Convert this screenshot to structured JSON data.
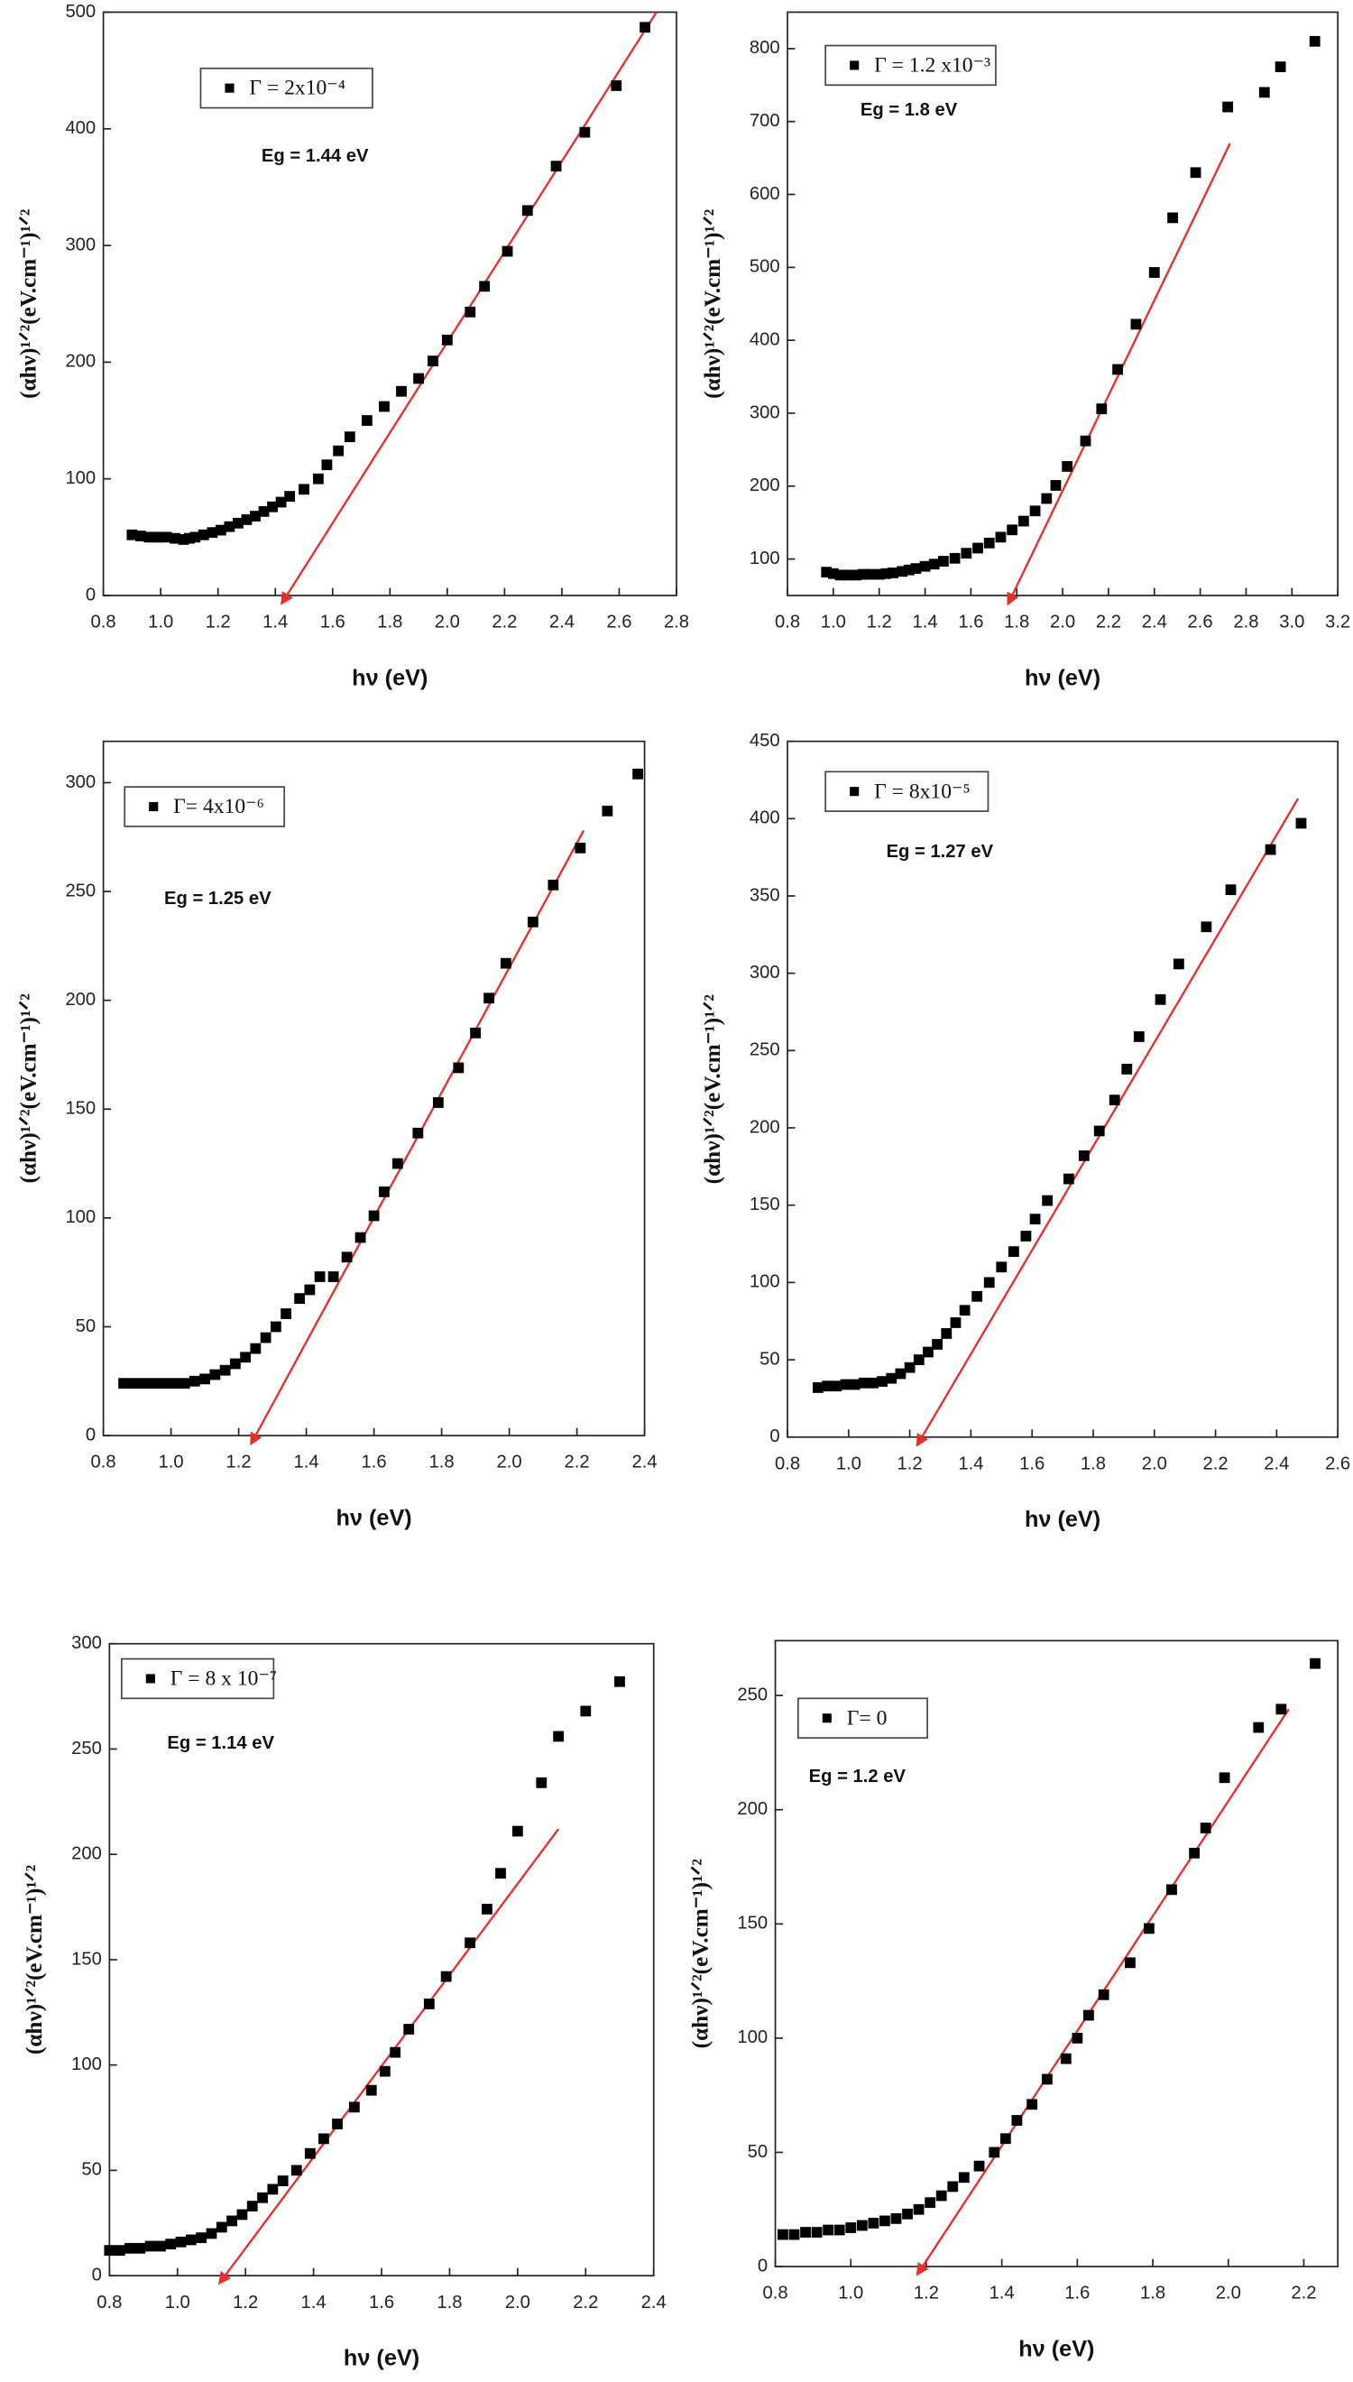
{
  "chart_data": [
    {
      "type": "scatter",
      "annotation": "Eg = 1.44 eV",
      "xlabel": "hν (eV)",
      "ylabel": "(αhν)¹ᐟ²(eV.cm⁻¹)¹ᐟ²",
      "x": [
        0.9,
        0.93,
        0.96,
        0.99,
        1.02,
        1.05,
        1.08,
        1.1,
        1.12,
        1.15,
        1.18,
        1.21,
        1.24,
        1.27,
        1.3,
        1.33,
        1.36,
        1.39,
        1.42,
        1.45,
        1.5,
        1.55,
        1.58,
        1.62,
        1.66,
        1.72,
        1.78,
        1.84,
        1.9,
        1.95,
        2.0,
        2.08,
        2.13,
        2.21,
        2.28,
        2.38,
        2.48,
        2.59,
        2.69
      ],
      "series": [
        {
          "name": "Γ = 2x10⁻⁴",
          "color": "#000000",
          "values": [
            52,
            51,
            50,
            50,
            50,
            49,
            48,
            49,
            50,
            52,
            54,
            56,
            59,
            62,
            65,
            68,
            72,
            76,
            80,
            85,
            91,
            100,
            112,
            124,
            136,
            150,
            162,
            175,
            186,
            201,
            219,
            243,
            265,
            295,
            330,
            368,
            397,
            437,
            487
          ]
        }
      ],
      "fit": {
        "x": [
          1.44,
          2.73
        ],
        "y": [
          0,
          500
        ],
        "color": "#e8302a"
      },
      "xlim": [
        0.8,
        2.8
      ],
      "xticks": [
        0.8,
        {
          "value": 1,
          "label": "1.0"
        },
        1.2,
        1.4,
        1.6,
        1.8,
        {
          "value": 2,
          "label": "2.0"
        },
        2.2,
        2.4,
        2.6,
        2.8
      ],
      "ylim": [
        0,
        500
      ],
      "yticks": [
        0,
        100,
        200,
        300,
        400,
        500
      ]
    },
    {
      "type": "scatter",
      "annotation": "Eg = 1.8 eV",
      "xlabel": "hν (eV)",
      "ylabel": "(αhν)¹ᐟ²(eV.cm⁻¹)¹ᐟ²",
      "x": [
        0.97,
        1.0,
        1.03,
        1.06,
        1.1,
        1.13,
        1.16,
        1.2,
        1.23,
        1.26,
        1.3,
        1.33,
        1.36,
        1.4,
        1.44,
        1.48,
        1.53,
        1.58,
        1.63,
        1.68,
        1.73,
        1.78,
        1.83,
        1.88,
        1.93,
        1.97,
        2.02,
        2.1,
        2.17,
        2.24,
        2.32,
        2.4,
        2.48,
        2.58,
        2.72,
        2.88,
        2.95,
        3.1
      ],
      "series": [
        {
          "name": "Γ = 1.2 x10⁻³",
          "color": "#000000",
          "values": [
            82,
            80,
            78,
            78,
            78,
            79,
            79,
            79,
            80,
            81,
            83,
            85,
            87,
            90,
            93,
            97,
            101,
            108,
            115,
            122,
            130,
            140,
            152,
            166,
            183,
            201,
            227,
            262,
            306,
            360,
            422,
            493,
            568,
            630,
            720,
            740,
            775,
            810
          ]
        }
      ],
      "fit": {
        "x": [
          1.78,
          2.73
        ],
        "y": [
          50,
          670
        ],
        "color": "#e8302a"
      },
      "xlim": [
        0.8,
        3.2
      ],
      "xticks": [
        0.8,
        {
          "value": 1,
          "label": "1.0"
        },
        1.2,
        1.4,
        1.6,
        1.8,
        {
          "value": 2,
          "label": "2.0"
        },
        2.2,
        2.4,
        2.6,
        2.8,
        {
          "value": 3,
          "label": "3.0"
        },
        3.2
      ],
      "ylim": [
        50,
        850
      ],
      "yticks": [
        100,
        200,
        300,
        400,
        500,
        600,
        700,
        800
      ]
    },
    {
      "type": "scatter",
      "annotation": "Eg = 1.25 eV",
      "xlabel": "hν (eV)",
      "ylabel": "(αhν)¹ᐟ²(eV.cm⁻¹)¹ᐟ²",
      "x": [
        0.86,
        0.89,
        0.92,
        0.95,
        0.98,
        1.01,
        1.04,
        1.07,
        1.1,
        1.13,
        1.16,
        1.19,
        1.22,
        1.25,
        1.28,
        1.31,
        1.34,
        1.38,
        1.41,
        1.44,
        1.48,
        1.52,
        1.56,
        1.6,
        1.63,
        1.67,
        1.73,
        1.79,
        1.85,
        1.9,
        1.94,
        1.99,
        2.07,
        2.13,
        2.21,
        2.29,
        2.38
      ],
      "series": [
        {
          "name": "Γ= 4x10⁻⁶",
          "color": "#000000",
          "values": [
            24,
            24,
            24,
            24,
            24,
            24,
            24,
            25,
            26,
            28,
            30,
            33,
            36,
            40,
            45,
            50,
            56,
            63,
            67,
            73,
            73,
            82,
            91,
            101,
            112,
            125,
            139,
            153,
            169,
            185,
            201,
            217,
            236,
            253,
            270,
            287,
            304
          ]
        }
      ],
      "fit": {
        "x": [
          1.25,
          2.22
        ],
        "y": [
          0,
          278
        ],
        "color": "#e8302a"
      },
      "xlim": [
        0.8,
        2.4
      ],
      "xticks": [
        0.8,
        {
          "value": 1,
          "label": "1.0"
        },
        1.2,
        1.4,
        1.6,
        1.8,
        {
          "value": 2,
          "label": "2.0"
        },
        2.2,
        2.4
      ],
      "ylim": [
        0,
        319
      ],
      "yticks": [
        0,
        50,
        100,
        150,
        200,
        250,
        300
      ]
    },
    {
      "type": "scatter",
      "annotation": "Eg = 1.27 eV",
      "xlabel": "hν (eV)",
      "ylabel": "(αhν)¹ᐟ²(eV.cm⁻¹)¹ᐟ²",
      "x": [
        0.9,
        0.93,
        0.96,
        0.99,
        1.02,
        1.05,
        1.08,
        1.11,
        1.14,
        1.17,
        1.2,
        1.23,
        1.26,
        1.29,
        1.32,
        1.35,
        1.38,
        1.42,
        1.46,
        1.5,
        1.54,
        1.58,
        1.61,
        1.65,
        1.72,
        1.77,
        1.82,
        1.87,
        1.91,
        1.95,
        2.02,
        2.08,
        2.17,
        2.25,
        2.38,
        2.48
      ],
      "series": [
        {
          "name": "Γ = 8x10⁻⁵",
          "color": "#000000",
          "values": [
            32,
            33,
            33,
            34,
            34,
            35,
            35,
            36,
            38,
            41,
            45,
            50,
            55,
            60,
            67,
            74,
            82,
            91,
            100,
            110,
            120,
            130,
            141,
            153,
            167,
            182,
            198,
            218,
            238,
            259,
            283,
            306,
            330,
            354,
            380,
            397
          ]
        }
      ],
      "fit": {
        "x": [
          1.24,
          2.47
        ],
        "y": [
          0,
          413
        ],
        "color": "#e8302a"
      },
      "xlim": [
        0.8,
        2.6
      ],
      "xticks": [
        0.8,
        {
          "value": 1,
          "label": "1.0"
        },
        1.2,
        1.4,
        1.6,
        1.8,
        {
          "value": 2,
          "label": "2.0"
        },
        2.2,
        2.4,
        2.6
      ],
      "ylim": [
        0,
        450
      ],
      "yticks": [
        0,
        50,
        100,
        150,
        200,
        250,
        300,
        350,
        400,
        450
      ]
    },
    {
      "type": "scatter",
      "annotation": "Eg = 1.14 eV",
      "xlabel": "hν (eV)",
      "ylabel": "(αhν)¹ᐟ²(eV.cm⁻¹)¹ᐟ²",
      "x": [
        0.8,
        0.83,
        0.86,
        0.89,
        0.92,
        0.95,
        0.98,
        1.01,
        1.04,
        1.07,
        1.1,
        1.13,
        1.16,
        1.19,
        1.22,
        1.25,
        1.28,
        1.31,
        1.35,
        1.39,
        1.43,
        1.47,
        1.52,
        1.57,
        1.61,
        1.64,
        1.68,
        1.74,
        1.79,
        1.86,
        1.91,
        1.95,
        2.0,
        2.07,
        2.12,
        2.2,
        2.3
      ],
      "series": [
        {
          "name": "Γ = 8 x 10⁻⁷",
          "color": "#000000",
          "values": [
            12,
            12,
            13,
            13,
            14,
            14,
            15,
            16,
            17,
            18,
            20,
            23,
            26,
            29,
            33,
            37,
            41,
            45,
            50,
            58,
            65,
            72,
            80,
            88,
            97,
            106,
            117,
            129,
            142,
            158,
            174,
            191,
            211,
            234,
            256,
            268,
            282
          ]
        }
      ],
      "fit": {
        "x": [
          1.14,
          2.12
        ],
        "y": [
          0,
          212
        ],
        "color": "#e8302a"
      },
      "xlim": [
        0.8,
        2.4
      ],
      "xticks": [
        0.8,
        {
          "value": 1,
          "label": "1.0"
        },
        1.2,
        1.4,
        1.6,
        1.8,
        {
          "value": 2,
          "label": "2.0"
        },
        2.2,
        2.4
      ],
      "ylim": [
        0,
        300
      ],
      "yticks": [
        0,
        50,
        100,
        150,
        200,
        250,
        300
      ]
    },
    {
      "type": "scatter",
      "annotation": "Eg = 1.2 eV",
      "xlabel": "hν (eV)",
      "ylabel": "(αhν)¹ᐟ²(eV.cm⁻¹)¹ᐟ²",
      "x": [
        0.82,
        0.85,
        0.88,
        0.91,
        0.94,
        0.97,
        1.0,
        1.03,
        1.06,
        1.09,
        1.12,
        1.15,
        1.18,
        1.21,
        1.24,
        1.27,
        1.3,
        1.34,
        1.38,
        1.41,
        1.44,
        1.48,
        1.52,
        1.57,
        1.6,
        1.63,
        1.67,
        1.74,
        1.79,
        1.85,
        1.91,
        1.94,
        1.99,
        2.08,
        2.14,
        2.23
      ],
      "series": [
        {
          "name": "Γ= 0",
          "color": "#000000",
          "values": [
            14,
            14,
            15,
            15,
            16,
            16,
            17,
            18,
            19,
            20,
            21,
            23,
            25,
            28,
            31,
            35,
            39,
            44,
            50,
            56,
            64,
            71,
            82,
            91,
            100,
            110,
            119,
            133,
            148,
            165,
            181,
            192,
            214,
            236,
            244,
            264
          ]
        }
      ],
      "fit": {
        "x": [
          1.19,
          2.16
        ],
        "y": [
          0,
          244
        ],
        "color": "#e8302a"
      },
      "xlim": [
        0.8,
        2.29
      ],
      "xticks": [
        0.8,
        {
          "value": 1,
          "label": "1.0"
        },
        1.2,
        1.4,
        1.6,
        1.8,
        {
          "value": 2,
          "label": "2.0"
        },
        2.2
      ],
      "ylim": [
        0,
        274
      ],
      "yticks": [
        0,
        50,
        100,
        150,
        200,
        250
      ]
    }
  ]
}
